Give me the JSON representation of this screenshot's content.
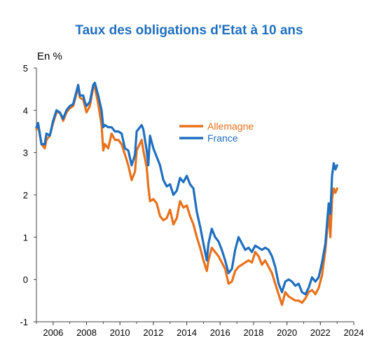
{
  "chart_data": {
    "type": "line",
    "title": "Taux des obligations d'Etat à 10 ans",
    "ylabel": "En %",
    "xlim": [
      2005,
      2024
    ],
    "ylim": [
      -1,
      5
    ],
    "x_ticks": [
      "2006",
      "2008",
      "2010",
      "2012",
      "2014",
      "2016",
      "2018",
      "2020",
      "2022",
      "2024"
    ],
    "y_ticks": [
      "-1",
      "0",
      "1",
      "2",
      "3",
      "4",
      "5"
    ],
    "legend_position": "center-right",
    "grid": false,
    "series": [
      {
        "name": "Allemagne",
        "color": "#e8711c",
        "x": [
          2005.0,
          2005.1,
          2005.3,
          2005.5,
          2005.6,
          2005.8,
          2006.0,
          2006.2,
          2006.4,
          2006.6,
          2006.8,
          2007.0,
          2007.2,
          2007.5,
          2007.6,
          2007.8,
          2007.9,
          2008.0,
          2008.2,
          2008.4,
          2008.5,
          2008.7,
          2008.9,
          2009.0,
          2009.1,
          2009.3,
          2009.5,
          2009.7,
          2009.9,
          2010.1,
          2010.3,
          2010.5,
          2010.7,
          2010.9,
          2011.0,
          2011.3,
          2011.4,
          2011.6,
          2011.7,
          2011.8,
          2012.0,
          2012.2,
          2012.4,
          2012.6,
          2012.8,
          2013.0,
          2013.2,
          2013.4,
          2013.6,
          2013.8,
          2014.0,
          2014.2,
          2014.4,
          2014.6,
          2014.8,
          2015.0,
          2015.2,
          2015.3,
          2015.5,
          2015.7,
          2015.9,
          2016.1,
          2016.3,
          2016.5,
          2016.7,
          2016.9,
          2017.1,
          2017.3,
          2017.5,
          2017.7,
          2017.9,
          2018.1,
          2018.3,
          2018.5,
          2018.7,
          2018.9,
          2019.1,
          2019.3,
          2019.5,
          2019.7,
          2019.9,
          2020.1,
          2020.3,
          2020.5,
          2020.7,
          2020.9,
          2021.1,
          2021.3,
          2021.5,
          2021.7,
          2021.9,
          2022.1,
          2022.3,
          2022.5,
          2022.6,
          2022.7,
          2022.8,
          2022.9,
          2023.0
        ],
        "y": [
          3.55,
          3.65,
          3.2,
          3.1,
          3.3,
          3.4,
          3.7,
          3.95,
          3.95,
          3.75,
          3.95,
          4.05,
          4.1,
          4.55,
          4.3,
          4.25,
          4.1,
          3.95,
          4.1,
          4.55,
          4.55,
          4.15,
          3.65,
          3.05,
          3.2,
          3.1,
          3.45,
          3.3,
          3.3,
          3.2,
          2.95,
          2.7,
          2.35,
          2.55,
          3.05,
          3.3,
          3.05,
          2.65,
          2.2,
          1.85,
          1.9,
          1.8,
          1.5,
          1.4,
          1.45,
          1.65,
          1.3,
          1.45,
          1.85,
          1.7,
          1.75,
          1.5,
          1.3,
          1.0,
          0.75,
          0.45,
          0.2,
          0.45,
          0.75,
          0.65,
          0.55,
          0.4,
          0.25,
          -0.1,
          -0.05,
          0.2,
          0.3,
          0.35,
          0.4,
          0.45,
          0.4,
          0.65,
          0.55,
          0.35,
          0.45,
          0.3,
          0.15,
          -0.1,
          -0.35,
          -0.6,
          -0.3,
          -0.4,
          -0.45,
          -0.5,
          -0.5,
          -0.55,
          -0.45,
          -0.3,
          -0.25,
          -0.35,
          -0.2,
          0.1,
          0.7,
          1.6,
          1.0,
          1.9,
          2.15,
          2.05,
          2.15
        ]
      },
      {
        "name": "France",
        "color": "#1f6fbf",
        "x": [
          2005.0,
          2005.1,
          2005.3,
          2005.5,
          2005.6,
          2005.8,
          2006.0,
          2006.2,
          2006.4,
          2006.6,
          2006.8,
          2007.0,
          2007.2,
          2007.5,
          2007.6,
          2007.8,
          2007.9,
          2008.0,
          2008.2,
          2008.4,
          2008.5,
          2008.7,
          2008.9,
          2009.0,
          2009.1,
          2009.3,
          2009.5,
          2009.7,
          2009.9,
          2010.1,
          2010.3,
          2010.5,
          2010.7,
          2010.9,
          2011.0,
          2011.3,
          2011.4,
          2011.6,
          2011.7,
          2011.8,
          2012.0,
          2012.2,
          2012.4,
          2012.6,
          2012.8,
          2013.0,
          2013.2,
          2013.4,
          2013.6,
          2013.8,
          2014.0,
          2014.2,
          2014.4,
          2014.6,
          2014.8,
          2015.0,
          2015.2,
          2015.3,
          2015.5,
          2015.7,
          2015.9,
          2016.1,
          2016.3,
          2016.5,
          2016.7,
          2016.9,
          2017.1,
          2017.3,
          2017.5,
          2017.7,
          2017.9,
          2018.1,
          2018.3,
          2018.5,
          2018.7,
          2018.9,
          2019.1,
          2019.3,
          2019.5,
          2019.7,
          2019.9,
          2020.1,
          2020.3,
          2020.5,
          2020.7,
          2020.9,
          2021.1,
          2021.3,
          2021.5,
          2021.7,
          2021.9,
          2022.1,
          2022.3,
          2022.5,
          2022.6,
          2022.7,
          2022.8,
          2022.9,
          2023.0
        ],
        "y": [
          3.6,
          3.7,
          3.2,
          3.2,
          3.45,
          3.4,
          3.75,
          4.0,
          3.95,
          3.8,
          4.0,
          4.1,
          4.15,
          4.6,
          4.35,
          4.35,
          4.2,
          4.1,
          4.2,
          4.6,
          4.65,
          4.35,
          4.0,
          3.6,
          3.65,
          3.6,
          3.6,
          3.5,
          3.5,
          3.45,
          3.1,
          3.05,
          2.7,
          2.95,
          3.5,
          3.65,
          3.55,
          3.05,
          2.7,
          3.4,
          3.1,
          2.9,
          2.7,
          2.35,
          2.2,
          2.25,
          2.0,
          2.1,
          2.4,
          2.3,
          2.45,
          2.25,
          2.15,
          1.6,
          1.25,
          0.85,
          0.45,
          0.85,
          1.2,
          1.0,
          0.9,
          0.7,
          0.45,
          0.15,
          0.25,
          0.7,
          1.0,
          0.85,
          0.7,
          0.75,
          0.65,
          0.8,
          0.75,
          0.7,
          0.75,
          0.7,
          0.55,
          0.3,
          -0.1,
          -0.3,
          -0.05,
          0.0,
          -0.05,
          -0.15,
          -0.1,
          -0.3,
          -0.35,
          -0.2,
          0.05,
          -0.05,
          0.05,
          0.4,
          0.85,
          1.8,
          1.55,
          2.45,
          2.75,
          2.6,
          2.7
        ]
      }
    ]
  }
}
